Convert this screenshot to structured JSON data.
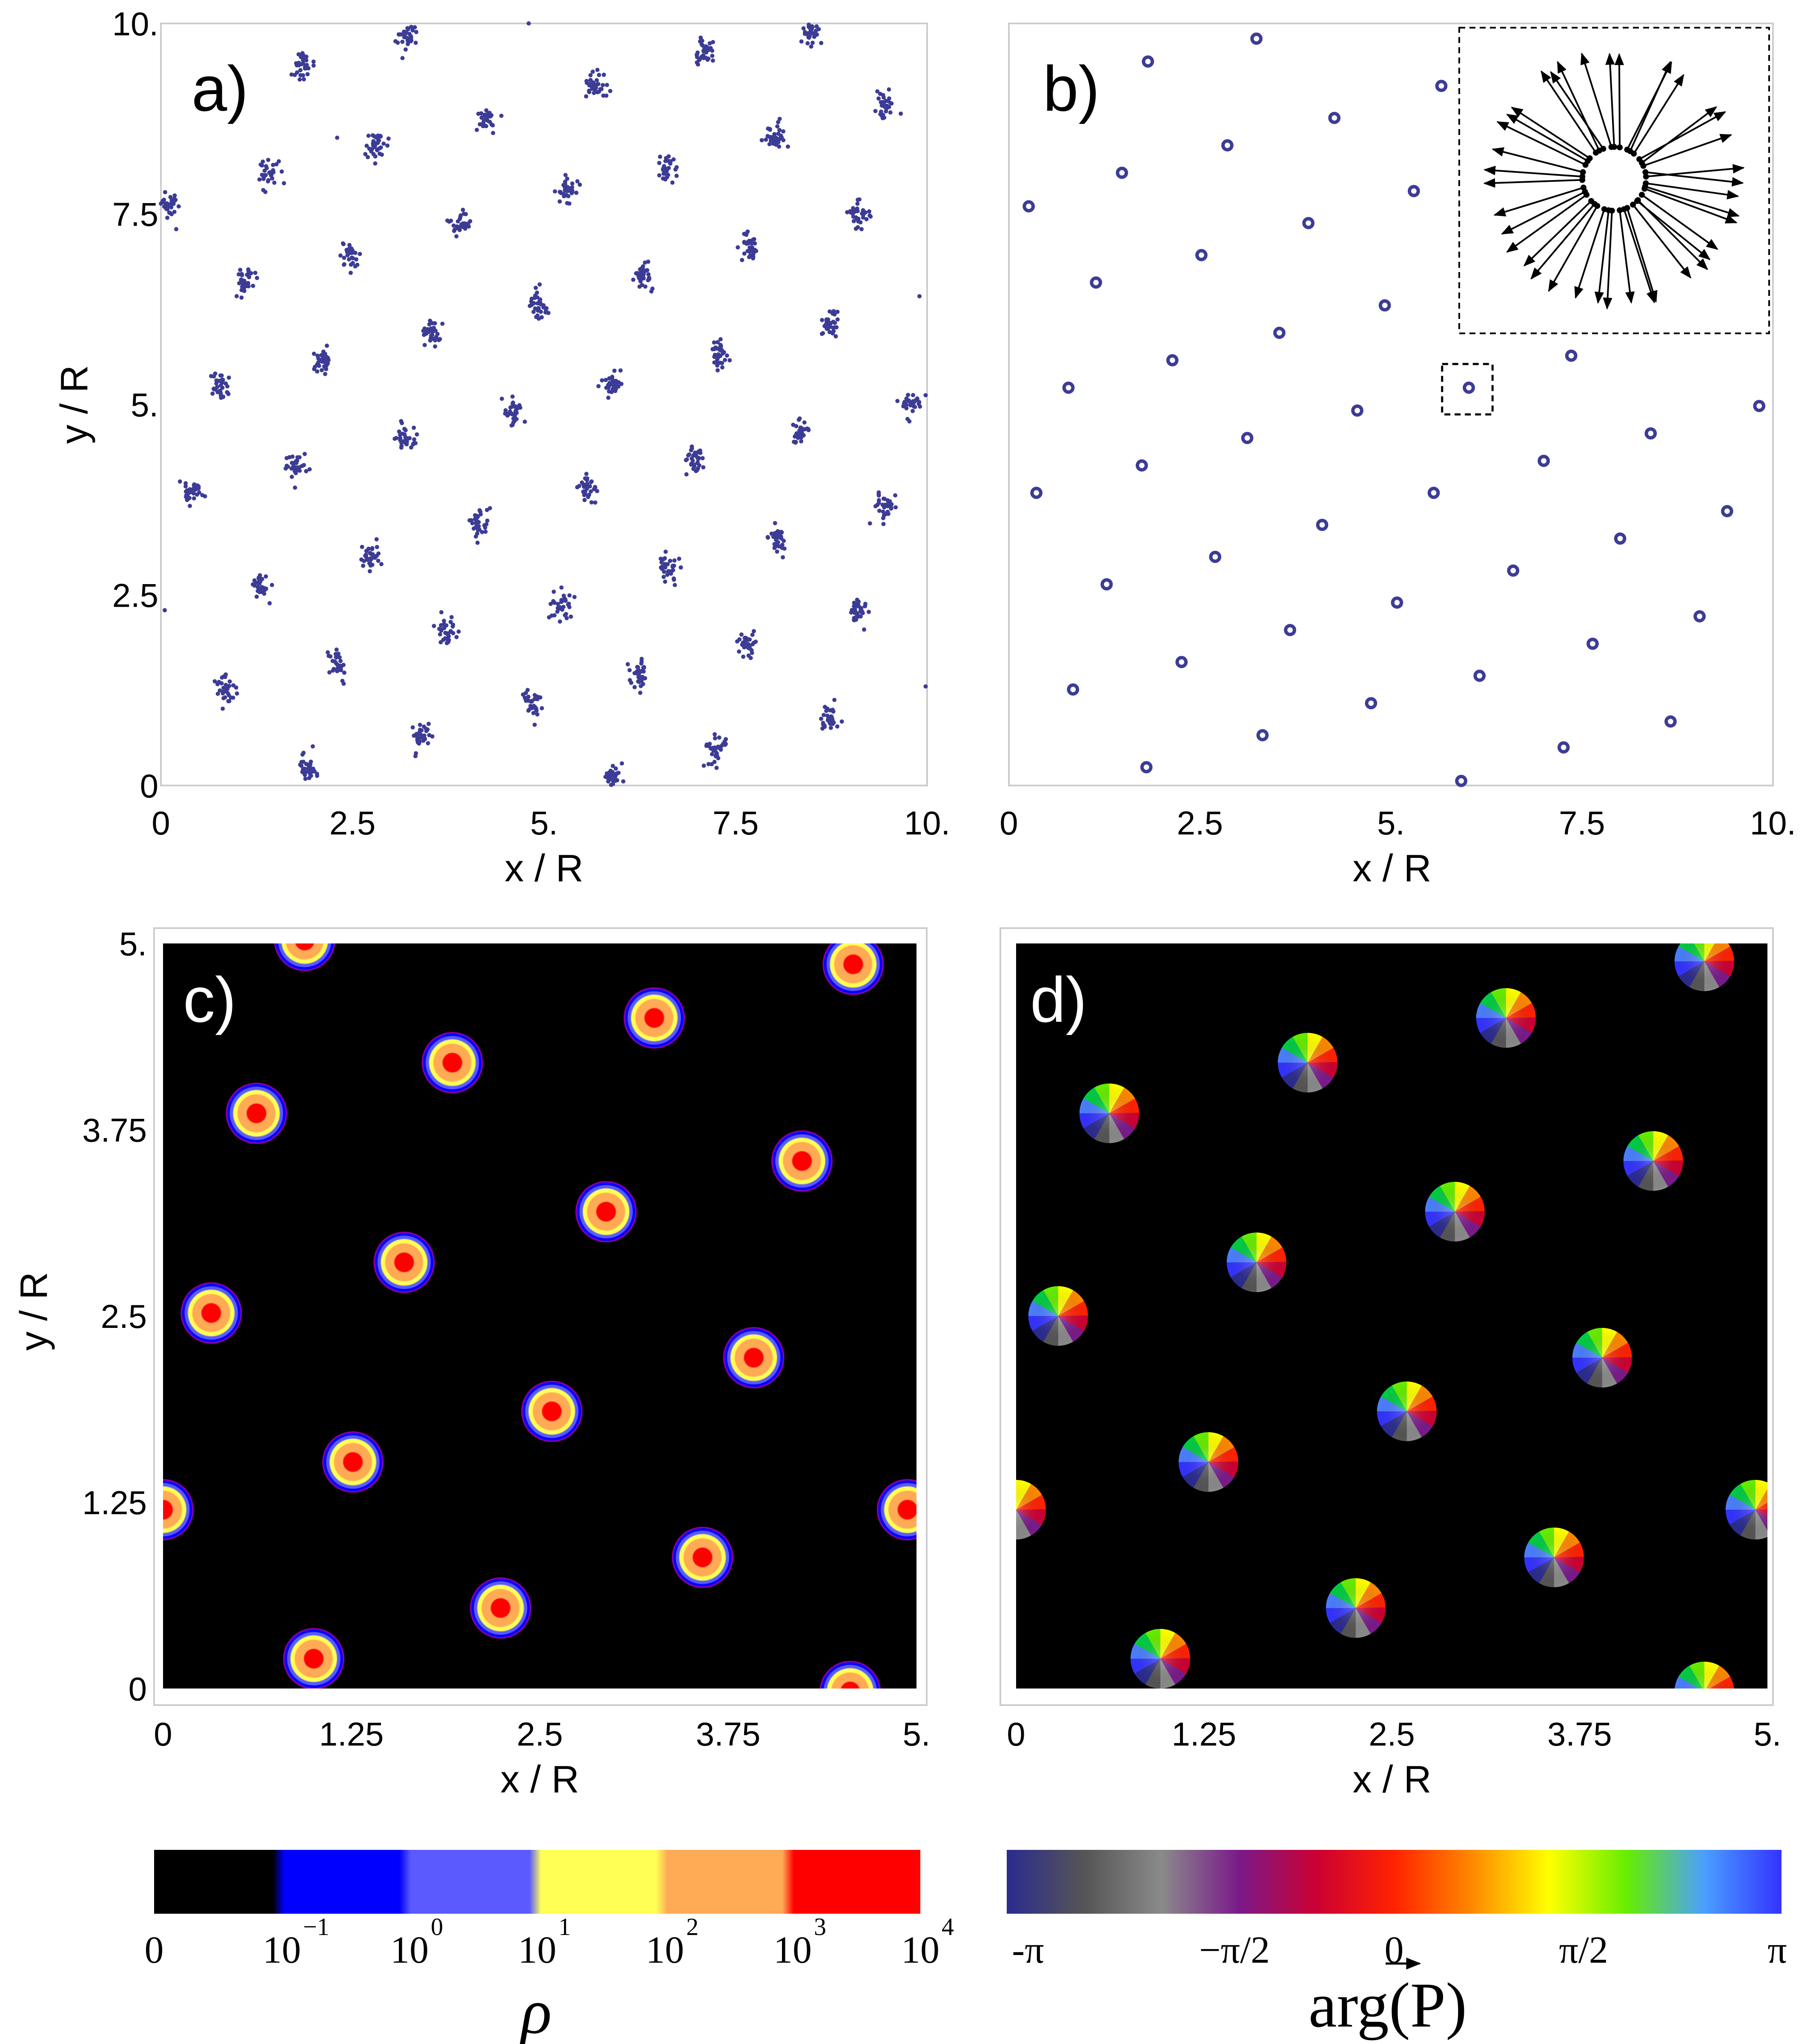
{
  "chart_data": [
    {
      "type": "scatter",
      "panel_label": "a)",
      "xlabel": "x / R",
      "ylabel": "y / R",
      "xlim": [
        0,
        10
      ],
      "ylim": [
        0,
        10
      ],
      "xticks": [
        "0",
        "2.5",
        "5.",
        "7.5",
        "10."
      ],
      "yticks": [
        "0",
        "2.5",
        "5.",
        "7.5",
        "10."
      ],
      "grid": false,
      "marker_color": "#3c3c96",
      "cluster_spread": 0.12,
      "clusters": [
        [
          0.08,
          7.62
        ],
        [
          1.4,
          8.04
        ],
        [
          1.87,
          9.45
        ],
        [
          3.2,
          9.8
        ],
        [
          2.8,
          8.4
        ],
        [
          4.24,
          8.76
        ],
        [
          5.66,
          9.18
        ],
        [
          7.08,
          9.6
        ],
        [
          6.62,
          8.1
        ],
        [
          8.04,
          8.52
        ],
        [
          8.5,
          9.9
        ],
        [
          9.45,
          8.94
        ],
        [
          1.12,
          6.6
        ],
        [
          2.48,
          6.96
        ],
        [
          3.9,
          7.38
        ],
        [
          5.3,
          7.8
        ],
        [
          6.28,
          6.66
        ],
        [
          7.68,
          7.08
        ],
        [
          9.1,
          7.5
        ],
        [
          0.78,
          5.22
        ],
        [
          2.12,
          5.58
        ],
        [
          3.54,
          5.94
        ],
        [
          4.94,
          6.3
        ],
        [
          5.9,
          5.28
        ],
        [
          7.3,
          5.64
        ],
        [
          8.72,
          6.06
        ],
        [
          9.8,
          5.0
        ],
        [
          0.42,
          3.84
        ],
        [
          1.76,
          4.2
        ],
        [
          3.18,
          4.56
        ],
        [
          4.6,
          4.92
        ],
        [
          5.55,
          3.9
        ],
        [
          6.96,
          4.26
        ],
        [
          8.36,
          4.62
        ],
        [
          9.44,
          3.66
        ],
        [
          1.3,
          2.64
        ],
        [
          2.74,
          3.0
        ],
        [
          4.16,
          3.42
        ],
        [
          5.22,
          2.4
        ],
        [
          6.62,
          2.82
        ],
        [
          8.02,
          3.24
        ],
        [
          9.1,
          2.28
        ],
        [
          0.86,
          1.26
        ],
        [
          2.3,
          1.62
        ],
        [
          3.72,
          2.04
        ],
        [
          4.82,
          1.08
        ],
        [
          6.24,
          1.44
        ],
        [
          7.66,
          1.86
        ],
        [
          8.72,
          0.9
        ],
        [
          1.92,
          0.24
        ],
        [
          3.4,
          0.66
        ],
        [
          5.9,
          0.12
        ],
        [
          7.24,
          0.48
        ]
      ],
      "stray_points": [
        [
          9.9,
          6.42
        ],
        [
          9.98,
          1.3
        ],
        [
          0.05,
          2.3
        ],
        [
          2.3,
          8.5
        ],
        [
          4.8,
          10.0
        ],
        [
          9.7,
          5.0
        ],
        [
          0.2,
          7.3
        ]
      ]
    },
    {
      "type": "scatter",
      "panel_label": "b)",
      "xlabel": "x / R",
      "ylim": [
        0,
        10
      ],
      "xlim": [
        0,
        10
      ],
      "xticks": [
        "0",
        "2.5",
        "5.",
        "7.5",
        "10."
      ],
      "grid": false,
      "marker_color": "#3c3c96",
      "ring_radius": 0.055,
      "rings": [
        [
          0.26,
          7.6
        ],
        [
          1.82,
          9.5
        ],
        [
          3.24,
          9.8
        ],
        [
          1.48,
          8.04
        ],
        [
          2.86,
          8.4
        ],
        [
          4.26,
          8.76
        ],
        [
          5.66,
          9.18
        ],
        [
          1.14,
          6.6
        ],
        [
          2.52,
          6.96
        ],
        [
          3.92,
          7.38
        ],
        [
          5.3,
          7.8
        ],
        [
          0.78,
          5.22
        ],
        [
          2.14,
          5.58
        ],
        [
          3.54,
          5.94
        ],
        [
          4.92,
          6.3
        ],
        [
          0.36,
          3.84
        ],
        [
          1.74,
          4.2
        ],
        [
          3.12,
          4.56
        ],
        [
          4.56,
          4.92
        ],
        [
          1.28,
          2.64
        ],
        [
          2.7,
          3.0
        ],
        [
          4.1,
          3.42
        ],
        [
          5.56,
          3.84
        ],
        [
          0.84,
          1.26
        ],
        [
          2.26,
          1.62
        ],
        [
          3.68,
          2.04
        ],
        [
          5.08,
          2.4
        ],
        [
          1.8,
          0.24
        ],
        [
          3.32,
          0.66
        ],
        [
          4.74,
          1.08
        ],
        [
          6.16,
          1.44
        ],
        [
          5.92,
          0.06
        ],
        [
          7.26,
          0.5
        ],
        [
          8.66,
          0.84
        ],
        [
          7.64,
          1.86
        ],
        [
          9.04,
          2.22
        ],
        [
          6.6,
          2.82
        ],
        [
          8.0,
          3.24
        ],
        [
          9.4,
          3.6
        ],
        [
          7.0,
          4.26
        ],
        [
          8.4,
          4.62
        ],
        [
          9.82,
          4.98
        ],
        [
          7.36,
          5.64
        ],
        [
          6.02,
          5.22
        ]
      ],
      "selection_box": {
        "x": 6.0,
        "y": 5.2,
        "half_size": 0.33
      },
      "inset_arrows": [
        [
          12,
          -0.32,
          1.0
        ],
        [
          24,
          -0.08,
          0.95
        ],
        [
          38,
          -0.16,
          1.0
        ],
        [
          52,
          0.1,
          0.95
        ],
        [
          66,
          -0.05,
          1.0
        ],
        [
          80,
          0.18,
          0.95
        ],
        [
          95,
          0.22,
          1.0
        ],
        [
          110,
          0.25,
          0.95
        ],
        [
          125,
          -0.02,
          1.0
        ],
        [
          140,
          0.12,
          0.95
        ],
        [
          154,
          0.0,
          1.0
        ],
        [
          168,
          -0.04,
          0.95
        ],
        [
          182,
          0.0,
          1.0
        ],
        [
          196,
          0.02,
          0.95
        ],
        [
          210,
          0.1,
          1.0
        ],
        [
          224,
          0.0,
          0.95
        ],
        [
          238,
          0.04,
          1.0
        ],
        [
          252,
          0.0,
          0.95
        ],
        [
          266,
          0.02,
          1.0
        ],
        [
          280,
          -0.05,
          0.95
        ],
        [
          294,
          -0.12,
          1.0
        ],
        [
          306,
          0.04,
          0.95
        ],
        [
          318,
          -0.05,
          1.0
        ],
        [
          330,
          -0.1,
          0.95
        ],
        [
          342,
          -0.04,
          1.0
        ],
        [
          352,
          0.0,
          0.95
        ],
        [
          4,
          0.02,
          1.0
        ],
        [
          30,
          0.12,
          0.95
        ],
        [
          60,
          0.1,
          1.0
        ],
        [
          90,
          0.05,
          0.95
        ],
        [
          118,
          -0.05,
          1.0
        ],
        [
          146,
          0.07,
          0.95
        ],
        [
          176,
          0.0,
          1.0
        ],
        [
          204,
          0.05,
          0.95
        ],
        [
          232,
          -0.04,
          1.0
        ],
        [
          260,
          0.06,
          0.95
        ],
        [
          288,
          0.0,
          1.0
        ],
        [
          316,
          0.09,
          0.95
        ],
        [
          346,
          -0.06,
          1.0
        ]
      ]
    },
    {
      "type": "heatmap",
      "panel_label": "c)",
      "xlabel": "x / R",
      "ylabel": "y / R",
      "xlim": [
        0,
        5
      ],
      "ylim": [
        0,
        5
      ],
      "xticks": [
        "0",
        "1.25",
        "2.5",
        "3.75",
        "5."
      ],
      "yticks": [
        "0",
        "1.25",
        "2.5",
        "3.75",
        "5."
      ],
      "background_color": "#000000",
      "peaks": [
        [
          0.32,
          2.52
        ],
        [
          0.62,
          3.86
        ],
        [
          1.0,
          0.2
        ],
        [
          1.26,
          1.52
        ],
        [
          1.6,
          2.86
        ],
        [
          1.92,
          4.2
        ],
        [
          2.24,
          0.54
        ],
        [
          2.58,
          1.86
        ],
        [
          2.94,
          3.2
        ],
        [
          3.26,
          4.5
        ],
        [
          3.58,
          0.88
        ],
        [
          3.92,
          2.22
        ],
        [
          4.24,
          3.54
        ],
        [
          4.58,
          4.86
        ],
        [
          4.94,
          1.2
        ],
        [
          0.0,
          1.2
        ],
        [
          0.94,
          5.02
        ],
        [
          4.56,
          -0.02
        ]
      ],
      "colorbar": {
        "label": "ρ",
        "tick_labels": [
          "0",
          "10",
          "10",
          "10",
          "10",
          "10",
          "10"
        ],
        "tick_exponents": [
          "",
          "−1",
          "0",
          "1",
          "2",
          "3",
          "4"
        ],
        "colors": [
          "#000000",
          "#0000ff",
          "#5a5aff",
          "#ffff55",
          "#ffaa55",
          "#ff0000"
        ]
      }
    },
    {
      "type": "heatmap",
      "panel_label": "d)",
      "xlabel": "x / R",
      "xlim": [
        0,
        5
      ],
      "ylim": [
        0,
        5
      ],
      "xticks": [
        "0",
        "1.25",
        "2.5",
        "3.75",
        "5."
      ],
      "background_color": "#000000",
      "vortices": [
        [
          0.28,
          2.5
        ],
        [
          0.62,
          3.86
        ],
        [
          0.96,
          0.2
        ],
        [
          1.28,
          1.52
        ],
        [
          1.6,
          2.86
        ],
        [
          1.94,
          4.2
        ],
        [
          2.26,
          0.54
        ],
        [
          2.6,
          1.86
        ],
        [
          2.92,
          3.2
        ],
        [
          3.26,
          4.5
        ],
        [
          3.58,
          0.88
        ],
        [
          3.9,
          2.22
        ],
        [
          4.24,
          3.54
        ],
        [
          4.58,
          4.88
        ],
        [
          4.92,
          1.2
        ],
        [
          0.0,
          1.2
        ],
        [
          4.58,
          -0.02
        ]
      ],
      "colorbar": {
        "label": "arg(P)",
        "tick_labels": [
          "-π",
          "−π/2",
          "0",
          "π/2",
          "π"
        ],
        "colors": [
          "#2b2b8f",
          "#555555",
          "#888888",
          "#7a1a8a",
          "#cc0033",
          "#ff2200",
          "#ff8800",
          "#ffff00",
          "#66ee00",
          "#00cc44",
          "#4a7fff",
          "#3333ff"
        ]
      }
    }
  ]
}
